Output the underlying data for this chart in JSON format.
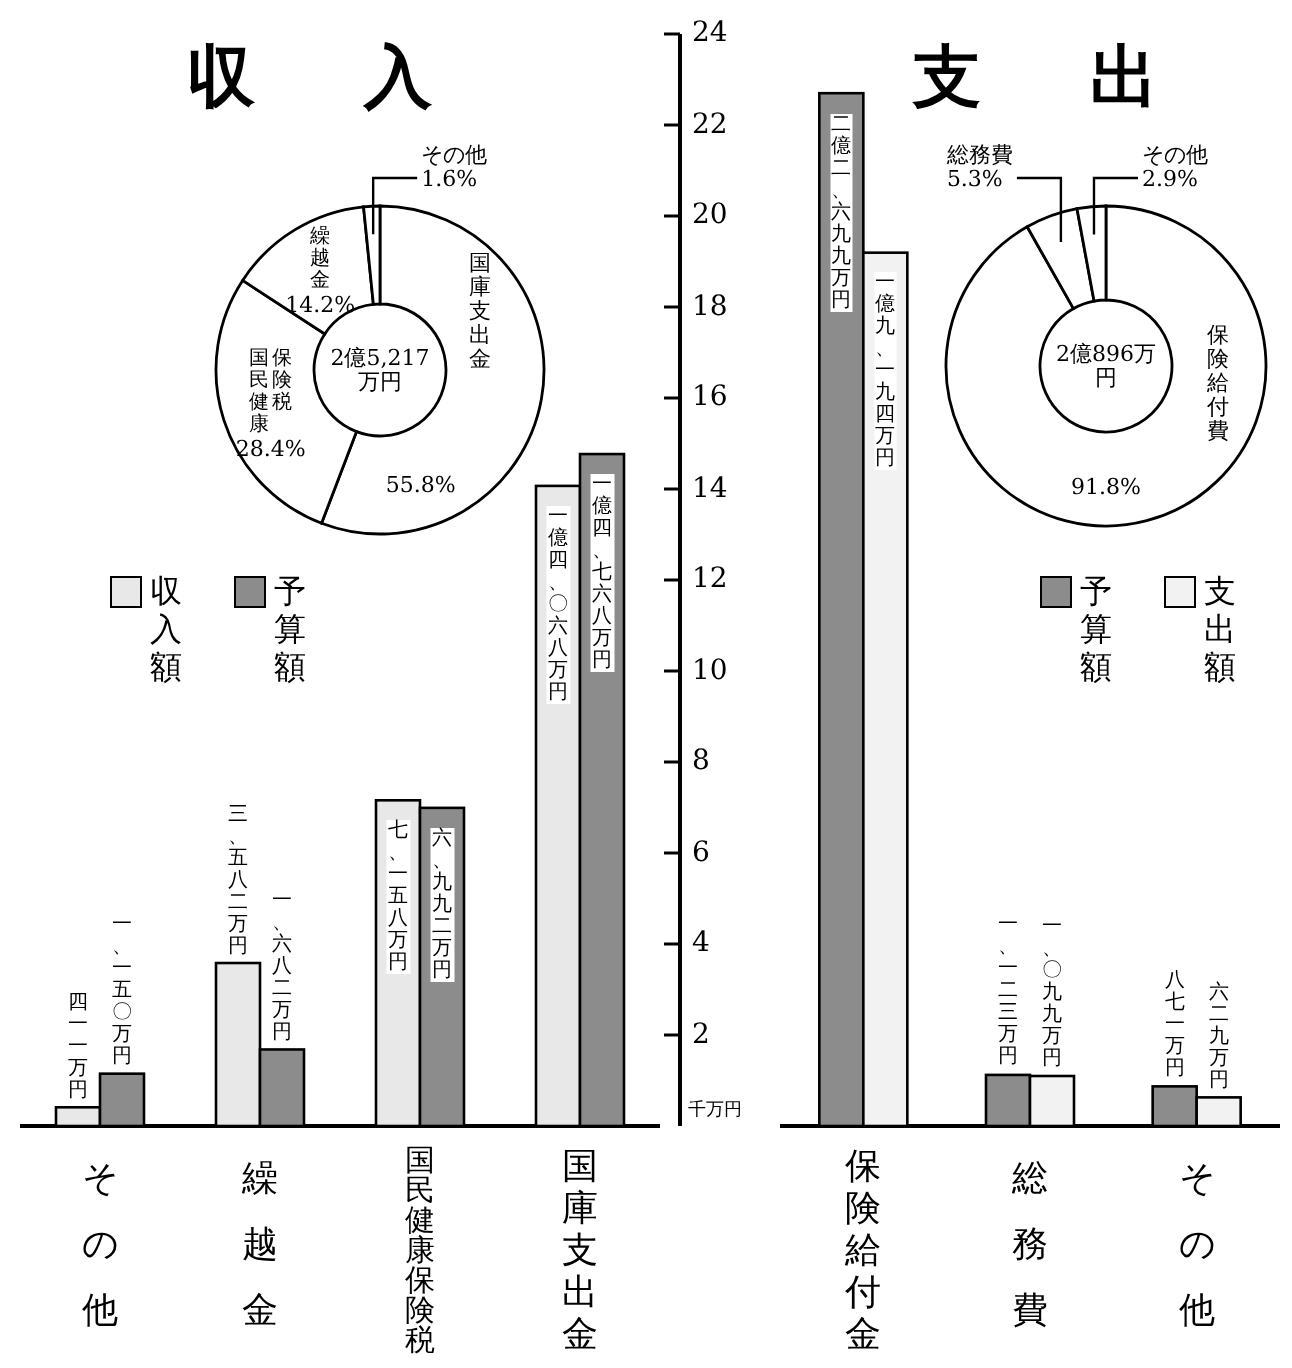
{
  "chart_data": [
    {
      "type": "donut",
      "title": "収入",
      "categories": [
        "国庫支出金",
        "国民健康保険税",
        "繰越金",
        "その他"
      ],
      "values": [
        55.8,
        28.4,
        14.2,
        1.6
      ],
      "value_labels": [
        "55.8%",
        "28.4%",
        "14.2%",
        "1.6%"
      ],
      "colors": [
        "#ffffff",
        "#ffffff",
        "#ffffff",
        "#ffffff"
      ],
      "annotations": [
        "2億5,217万円"
      ]
    },
    {
      "type": "donut",
      "title": "支出",
      "categories": [
        "保険給付費",
        "総務費",
        "その他"
      ],
      "values": [
        91.8,
        5.3,
        2.9
      ],
      "value_labels": [
        "91.8%",
        "5.3%",
        "2.9%"
      ],
      "colors": [
        "#ffffff",
        "#ffffff",
        "#ffffff"
      ],
      "annotations": [
        "2億896万円"
      ]
    },
    {
      "type": "bar",
      "categories": [
        "その他",
        "繰越金",
        "国民健康保険税",
        "国庫支出金"
      ],
      "tick_labels": "x",
      "ylim": [
        0,
        24
      ],
      "yticks": [
        2,
        4,
        6,
        8,
        10,
        12,
        14,
        16,
        18,
        20,
        22,
        24
      ],
      "legend": "left",
      "series": [
        {
          "name": "収入額",
          "color": "#e8e8e8",
          "values": [
            0.411,
            3.582,
            7.158,
            14.068
          ],
          "value_labels": [
            "四一一万円",
            "三、五八二万円",
            "七、一五八万円",
            "一億四、〇六八万円"
          ]
        },
        {
          "name": "予算額",
          "color": "#8c8c8c",
          "values": [
            1.15,
            1.682,
            6.992,
            14.768
          ],
          "value_labels": [
            "一、一五〇万円",
            "一、六八二万円",
            "六、九九二万円",
            "一億四、七六八万円"
          ]
        }
      ]
    },
    {
      "type": "bar",
      "categories": [
        "保険給付金",
        "総務費",
        "その他"
      ],
      "ylim": [
        0,
        24
      ],
      "yticks": [
        2,
        4,
        6,
        8,
        10,
        12,
        14,
        16,
        18,
        20,
        22,
        24
      ],
      "ylabel": "千万円",
      "legend": "right",
      "series": [
        {
          "name": "予算額",
          "color": "#8c8c8c",
          "values": [
            22.699,
            1.123,
            0.871
          ],
          "value_labels": [
            "二億二、六九九万円",
            "一、一二三万円",
            "八七一万円"
          ]
        },
        {
          "name": "支出額",
          "color": "#f2f2f2",
          "values": [
            19.194,
            1.099,
            0.629
          ],
          "value_labels": [
            "一億九、一九四万円",
            "一、〇九九万円",
            "六二九万円"
          ]
        }
      ]
    }
  ]
}
